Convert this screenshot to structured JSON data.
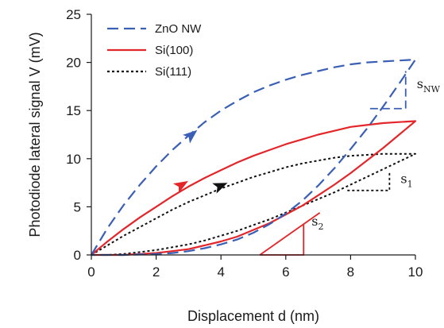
{
  "chart_data": {
    "type": "line",
    "xlabel": "Displacement d (nm)",
    "ylabel": "Photodiode lateral signal V (mV)",
    "xlim": [
      0,
      10
    ],
    "ylim": [
      0,
      25
    ],
    "xticks": [
      0,
      2,
      4,
      6,
      8,
      10
    ],
    "yticks": [
      0,
      5,
      10,
      15,
      20,
      25
    ],
    "grid": false,
    "legend_position": "top-left",
    "series": [
      {
        "name": "ZnO NW",
        "color": "#3a5fb5",
        "dash": "dashed",
        "loading": {
          "x": [
            0,
            0.5,
            1,
            1.5,
            2,
            2.5,
            3,
            3.5,
            4,
            4.5,
            5,
            5.5,
            6,
            6.5,
            7,
            7.5,
            8,
            8.5,
            9,
            9.5,
            10
          ],
          "y": [
            0,
            2.8,
            5.2,
            7.3,
            9.2,
            10.9,
            12.4,
            13.8,
            15,
            16,
            16.9,
            17.6,
            18.2,
            18.7,
            19.1,
            19.5,
            19.8,
            20,
            20.1,
            20.2,
            20.3
          ]
        },
        "unloading": {
          "x": [
            10,
            9.5,
            9,
            8.5,
            8,
            7.5,
            7,
            6.5,
            6,
            5.5,
            5,
            4.5,
            4,
            3.5,
            3,
            2.5,
            2,
            1.5,
            1,
            0.5,
            0
          ],
          "y": [
            20.3,
            17.8,
            15.4,
            13.1,
            11,
            9,
            7.2,
            5.6,
            4.3,
            3.2,
            2.3,
            1.6,
            1.1,
            0.7,
            0.4,
            0.2,
            0.1,
            0.05,
            0,
            0,
            0
          ]
        }
      },
      {
        "name": "Si(100)",
        "color": "#e3262a",
        "dash": "solid",
        "loading": {
          "x": [
            0,
            0.5,
            1,
            1.5,
            2,
            2.5,
            3,
            3.5,
            4,
            4.5,
            5,
            5.5,
            6,
            6.5,
            7,
            7.5,
            8,
            8.5,
            9,
            9.5,
            10
          ],
          "y": [
            0,
            1.4,
            2.7,
            3.9,
            5,
            6.1,
            7.1,
            8,
            8.8,
            9.6,
            10.3,
            10.9,
            11.5,
            12,
            12.5,
            12.9,
            13.3,
            13.5,
            13.7,
            13.8,
            13.9
          ]
        },
        "unloading": {
          "x": [
            10,
            9.5,
            9,
            8.5,
            8,
            7.5,
            7,
            6.5,
            6,
            5.5,
            5,
            4.5,
            4,
            3.5,
            3,
            2.5,
            2,
            1.5,
            1,
            0.5,
            0
          ],
          "y": [
            13.9,
            12.5,
            11.1,
            9.8,
            8.5,
            7.3,
            6.2,
            5.1,
            4.2,
            3.3,
            2.6,
            1.9,
            1.4,
            1,
            0.6,
            0.4,
            0.2,
            0.1,
            0,
            0,
            0
          ]
        }
      },
      {
        "name": "Si(111)",
        "color": "#111111",
        "dash": "dotted",
        "loading": {
          "x": [
            0,
            0.5,
            1,
            1.5,
            2,
            2.5,
            3,
            3.5,
            4,
            4.5,
            5,
            5.5,
            6,
            6.5,
            7,
            7.5,
            8,
            8.5,
            9,
            9.5,
            10
          ],
          "y": [
            0,
            1,
            2,
            2.9,
            3.8,
            4.7,
            5.5,
            6.2,
            6.9,
            7.5,
            8.1,
            8.6,
            9.1,
            9.5,
            9.8,
            10.1,
            10.3,
            10.4,
            10.5,
            10.5,
            10.5
          ]
        },
        "unloading": {
          "x": [
            10,
            9.5,
            9,
            8.5,
            8,
            7.5,
            7,
            6.5,
            6,
            5.5,
            5,
            4.5,
            4,
            3.5,
            3,
            2.5,
            2,
            1.5,
            1,
            0.5,
            0
          ],
          "y": [
            10.5,
            9.7,
            8.9,
            8.1,
            7.3,
            6.5,
            5.8,
            5.1,
            4.4,
            3.7,
            3.1,
            2.5,
            2,
            1.5,
            1.1,
            0.8,
            0.5,
            0.3,
            0.1,
            0,
            0
          ]
        }
      }
    ],
    "direction_arrows": [
      {
        "series": "ZnO NW",
        "x": 3.1,
        "y": 12.5
      },
      {
        "series": "Si(100)",
        "x": 2.8,
        "y": 7.3
      },
      {
        "series": "Si(111)",
        "x": 4.0,
        "y": 7.2
      }
    ],
    "slope_triangles": [
      {
        "label": "s",
        "sub": "NW",
        "color": "#3a5fb5",
        "x0": 8.6,
        "x1": 9.7,
        "ytop": 19.1,
        "ybottom": 15.2
      },
      {
        "label": "s",
        "sub": "1",
        "color": "#111111",
        "x0": 7.9,
        "x1": 9.2,
        "ytop": 8.6,
        "ybottom": 6.7
      },
      {
        "label": "s",
        "sub": "2",
        "color": "#e3262a",
        "x0": 5.2,
        "x1": 6.55,
        "ytop": 3.2,
        "ybottom": 0
      }
    ]
  }
}
